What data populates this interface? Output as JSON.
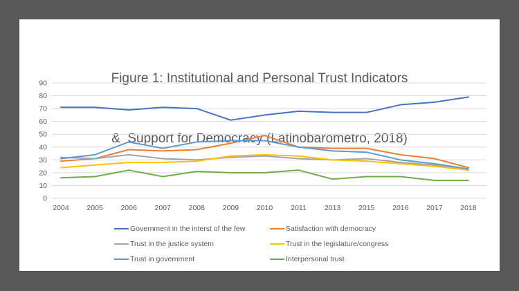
{
  "frame": {
    "background_color": "#595959",
    "panel_color": "#ffffff",
    "text_color": "#595959"
  },
  "title": {
    "line1": "Figure 1: Institutional and Personal Trust Indicators",
    "line2": "&  Support for Democracy (Latinobarometro, 2018)"
  },
  "chart_data": {
    "type": "line",
    "title": "Figure 1: Institutional and Personal Trust Indicators &  Support for Democracy (Latinobarometro, 2018)",
    "categories": [
      "2004",
      "2005",
      "2006",
      "2007",
      "2008",
      "2009",
      "2010",
      "2011",
      "2013",
      "2015",
      "2016",
      "2017",
      "2018"
    ],
    "series": [
      {
        "name": "Government in the interst of the few",
        "color": "#4472C4",
        "values": [
          71,
          71,
          69,
          71,
          70,
          61,
          65,
          68,
          67,
          67,
          73,
          75,
          79
        ]
      },
      {
        "name": "Satisfaction with democracy",
        "color": "#ED7D31",
        "values": [
          29,
          31,
          38,
          37,
          38,
          43,
          49,
          40,
          39,
          39,
          34,
          31,
          24
        ]
      },
      {
        "name": "Trust in the justice system",
        "color": "#A5A5A5",
        "values": [
          32,
          31,
          34,
          31,
          30,
          32,
          33,
          31,
          30,
          31,
          28,
          26,
          22
        ]
      },
      {
        "name": "Trust in the legislature/congress",
        "color": "#FFC000",
        "values": [
          24,
          26,
          28,
          28,
          29,
          33,
          34,
          33,
          30,
          29,
          27,
          25,
          22
        ]
      },
      {
        "name": "Trust in government",
        "color": "#5B9BD5",
        "values": [
          31,
          34,
          44,
          39,
          44,
          45,
          45,
          40,
          37,
          36,
          30,
          27,
          23
        ]
      },
      {
        "name": "Interpersonal trust",
        "color": "#70AD47",
        "values": [
          16,
          17,
          22,
          17,
          21,
          20,
          20,
          22,
          15,
          17,
          17,
          14,
          14
        ]
      }
    ],
    "xlabel": "",
    "ylabel": "",
    "ylim": [
      0,
      90
    ],
    "ytick_step": 10,
    "grid": true,
    "gridline_color": "#D9D9D9",
    "axis_text_color": "#595959",
    "legend_position": "bottom"
  }
}
